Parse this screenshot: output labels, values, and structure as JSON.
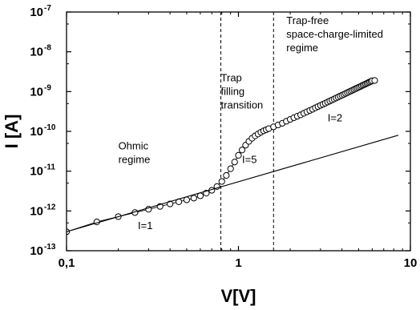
{
  "chart_data": {
    "type": "scatter",
    "title": "",
    "xlabel": "V[V]",
    "ylabel": "I [A]",
    "xscale": "log",
    "yscale": "log",
    "xlim": [
      0.1,
      10
    ],
    "ylim": [
      1e-13,
      1e-07
    ],
    "grid": false,
    "x_tick_labels": [
      {
        "value": 0.1,
        "label": "0,1"
      },
      {
        "value": 1,
        "label": "1"
      },
      {
        "value": 10,
        "label": "10"
      }
    ],
    "y_tick_labels": [
      {
        "value": 1e-13,
        "base": "10",
        "exp": "-13"
      },
      {
        "value": 1e-12,
        "base": "10",
        "exp": "-12"
      },
      {
        "value": 1e-11,
        "base": "10",
        "exp": "-11"
      },
      {
        "value": 1e-10,
        "base": "10",
        "exp": "-10"
      },
      {
        "value": 1e-09,
        "base": "10",
        "exp": "-9"
      },
      {
        "value": 1e-08,
        "base": "10",
        "exp": "-8"
      },
      {
        "value": 1e-07,
        "base": "10",
        "exp": "-7"
      }
    ],
    "series": [
      {
        "marker": "open-circle",
        "x": [
          0.1,
          0.15,
          0.2,
          0.25,
          0.3,
          0.35,
          0.4,
          0.45,
          0.5,
          0.55,
          0.6,
          0.65,
          0.7,
          0.75,
          0.8,
          0.85,
          0.9,
          0.95,
          1.0,
          1.05,
          1.1,
          1.15,
          1.2,
          1.25,
          1.3,
          1.35,
          1.4,
          1.45,
          1.5,
          1.6,
          1.7,
          1.8,
          1.9,
          2.0,
          2.1,
          2.2,
          2.3,
          2.4,
          2.5,
          2.6,
          2.7,
          2.8,
          2.9,
          3.0,
          3.1,
          3.2,
          3.3,
          3.4,
          3.5,
          3.6,
          3.7,
          3.8,
          3.9,
          4.0,
          4.1,
          4.2,
          4.3,
          4.4,
          4.5,
          4.6,
          4.7,
          4.8,
          4.9,
          5.0,
          5.1,
          5.2,
          5.3,
          5.4,
          5.5,
          5.6,
          5.7,
          5.8,
          5.9,
          6.0,
          6.2
        ],
        "y": [
          3e-13,
          5.3e-13,
          7.2e-13,
          9.1e-13,
          1.1e-12,
          1.3e-12,
          1.5e-12,
          1.7e-12,
          1.9e-12,
          2.1e-12,
          2.4e-12,
          2.8e-12,
          3.3e-12,
          4.1e-12,
          5.5e-12,
          7.8e-12,
          1.15e-11,
          1.7e-11,
          2.5e-11,
          3.4e-11,
          4.5e-11,
          5.6e-11,
          6.7e-11,
          7.7e-11,
          8.6e-11,
          9.5e-11,
          1.03e-10,
          1.1e-10,
          1.17e-10,
          1.3e-10,
          1.45e-10,
          1.6e-10,
          1.8e-10,
          2e-10,
          2.2e-10,
          2.4e-10,
          2.6e-10,
          2.85e-10,
          3.1e-10,
          3.35e-10,
          3.6e-10,
          3.9e-10,
          4.2e-10,
          4.5e-10,
          4.8e-10,
          5.1e-10,
          5.45e-10,
          5.8e-10,
          6.15e-10,
          6.5e-10,
          6.9e-10,
          7.3e-10,
          7.7e-10,
          8.1e-10,
          8.5e-10,
          8.95e-10,
          9.4e-10,
          9.85e-10,
          1.03e-09,
          1.08e-09,
          1.13e-09,
          1.18e-09,
          1.23e-09,
          1.28e-09,
          1.33e-09,
          1.39e-09,
          1.45e-09,
          1.5e-09,
          1.56e-09,
          1.62e-09,
          1.68e-09,
          1.74e-09,
          1.8e-09,
          1.87e-09,
          1.9e-09
        ]
      },
      {
        "marker": "line",
        "x": [
          0.1,
          8.5
        ],
        "y": [
          3e-13,
          8e-11
        ]
      }
    ],
    "reference_lines": [
      {
        "orientation": "vertical",
        "style": "dashed",
        "x": 0.79
      },
      {
        "orientation": "vertical",
        "style": "dashed",
        "x": 1.6
      }
    ],
    "annotations": [
      {
        "lines": [
          "Ohmic",
          "regime"
        ],
        "x": 0.2,
        "y": 3.5e-11
      },
      {
        "lines": [
          "I=1"
        ],
        "x": 0.26,
        "y": 3.5e-13
      },
      {
        "lines": [
          "Trap",
          "filling",
          "transition"
        ],
        "x": 0.79,
        "y": 1.8e-09
      },
      {
        "lines": [
          "I=5"
        ],
        "x": 1.05,
        "y": 1.6e-11
      },
      {
        "lines": [
          "Trap-free",
          "space-charge-limited",
          "regime"
        ],
        "x": 1.9,
        "y": 5e-08
      },
      {
        "lines": [
          "I=2"
        ],
        "x": 3.3,
        "y": 1.8e-10
      }
    ]
  }
}
